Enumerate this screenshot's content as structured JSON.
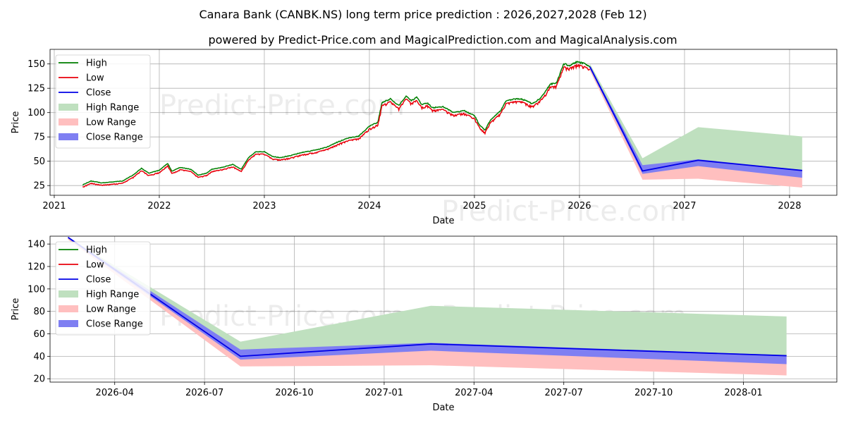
{
  "title_line1": "Canara Bank (CANBK.NS) long term price prediction : 2026,2027,2028 (Feb 12)",
  "title_line2": "powered by Predict-Price.com and MagicalPrediction.com and MagicalAnalysis.com",
  "watermark": "Predict-Price.com",
  "colors": {
    "high": "#007f00",
    "low": "#e8000b",
    "close": "#0000e6",
    "high_range": "#bfe0bf",
    "low_range": "#ffbfbf",
    "close_range": "#7f7ff2"
  },
  "legend": [
    "High",
    "Low",
    "Close",
    "High Range",
    "Low Range",
    "Close Range"
  ],
  "chart_data": [
    {
      "type": "line",
      "xlabel": "Date",
      "ylabel": "Price",
      "xlim": [
        2020.96,
        2028.45
      ],
      "ylim": [
        15,
        165
      ],
      "xticks": [
        {
          "value": 2021,
          "label": "2021"
        },
        {
          "value": 2022,
          "label": "2022"
        },
        {
          "value": 2023,
          "label": "2023"
        },
        {
          "value": 2024,
          "label": "2024"
        },
        {
          "value": 2025,
          "label": "2025"
        },
        {
          "value": 2026,
          "label": "2026"
        },
        {
          "value": 2027,
          "label": "2027"
        },
        {
          "value": 2028,
          "label": "2028"
        }
      ],
      "yticks": [
        25,
        50,
        75,
        100,
        125,
        150
      ],
      "history": {
        "x": [
          2021.27,
          2021.35,
          2021.45,
          2021.55,
          2021.65,
          2021.75,
          2021.83,
          2021.9,
          2022.0,
          2022.08,
          2022.12,
          2022.2,
          2022.3,
          2022.37,
          2022.45,
          2022.5,
          2022.6,
          2022.7,
          2022.78,
          2022.85,
          2022.92,
          2023.0,
          2023.08,
          2023.15,
          2023.25,
          2023.35,
          2023.5,
          2023.6,
          2023.7,
          2023.8,
          2023.9,
          2024.0,
          2024.08,
          2024.12,
          2024.2,
          2024.28,
          2024.35,
          2024.4,
          2024.45,
          2024.5,
          2024.55,
          2024.6,
          2024.7,
          2024.8,
          2024.9,
          2025.0,
          2025.05,
          2025.1,
          2025.15,
          2025.25,
          2025.3,
          2025.38,
          2025.45,
          2025.55,
          2025.62,
          2025.68,
          2025.72,
          2025.78,
          2025.85,
          2025.9,
          2025.98,
          2026.05,
          2026.1
        ],
        "close": [
          24,
          28,
          26,
          27,
          28,
          34,
          41,
          36,
          39,
          46,
          38,
          42,
          40,
          34,
          36,
          40,
          42,
          45,
          40,
          52,
          58,
          58,
          53,
          52,
          54,
          57,
          60,
          63,
          68,
          72,
          74,
          84,
          88,
          108,
          112,
          105,
          115,
          110,
          114,
          106,
          108,
          103,
          104,
          98,
          100,
          95,
          85,
          80,
          90,
          100,
          110,
          112,
          112,
          107,
          112,
          120,
          127,
          128,
          148,
          146,
          150,
          148,
          145
        ]
      },
      "forecast_points": {
        "x": [
          2026.1,
          2026.6,
          2027.13,
          2028.12
        ],
        "close": [
          147,
          40,
          51,
          40.5
        ],
        "high_upper": [
          150,
          53,
          85,
          75.5
        ],
        "low_lower": [
          143,
          31,
          32,
          23
        ],
        "close_upper": [
          148,
          46,
          52,
          41
        ],
        "close_lower": [
          145,
          37,
          45,
          33
        ]
      }
    },
    {
      "type": "line",
      "xlabel": "Date",
      "ylabel": "Price",
      "xlim": [
        2026.07,
        2028.26
      ],
      "ylim": [
        17,
        147
      ],
      "xticks": [
        {
          "value": 2026.25,
          "label": "2026-04"
        },
        {
          "value": 2026.5,
          "label": "2026-07"
        },
        {
          "value": 2026.75,
          "label": "2026-10"
        },
        {
          "value": 2027.0,
          "label": "2027-01"
        },
        {
          "value": 2027.25,
          "label": "2027-04"
        },
        {
          "value": 2027.5,
          "label": "2027-07"
        },
        {
          "value": 2027.75,
          "label": "2027-10"
        },
        {
          "value": 2028.0,
          "label": "2028-01"
        }
      ],
      "yticks": [
        20,
        40,
        60,
        80,
        100,
        120,
        140
      ],
      "forecast_points": {
        "x": [
          2026.12,
          2026.6,
          2027.13,
          2028.12
        ],
        "close": [
          146,
          40,
          51,
          40.5
        ],
        "high_upper": [
          146,
          53,
          85,
          75.5
        ],
        "low_lower": [
          144,
          31,
          32,
          23
        ],
        "close_upper": [
          146,
          46,
          52,
          41
        ],
        "close_lower": [
          145,
          37,
          45,
          33
        ]
      }
    }
  ]
}
